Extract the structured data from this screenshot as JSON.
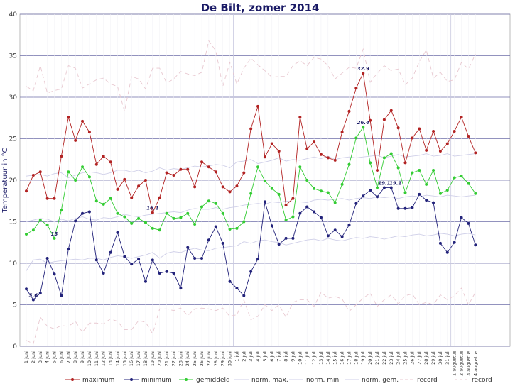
{
  "chart_data": {
    "type": "line",
    "title": "De Bilt, zomer 2014",
    "ylabel": "Temperatuur in °C",
    "ylim": [
      0,
      40
    ],
    "yticks": [
      0,
      5,
      10,
      15,
      20,
      25,
      30,
      35,
      40
    ],
    "grid": true,
    "categories": [
      "1 juni",
      "2 juni",
      "3 juni",
      "4 juni",
      "5 juni",
      "6 juni",
      "7 juni",
      "8 juni",
      "9 juni",
      "10 juni",
      "11 juni",
      "12 juni",
      "13 juni",
      "14 juni",
      "15 juni",
      "16 juni",
      "17 juni",
      "18 juni",
      "19 juni",
      "20 juni",
      "21 juni",
      "22 juni",
      "23 juni",
      "24 juni",
      "25 juni",
      "26 juni",
      "27 juni",
      "28 juni",
      "29 juni",
      "30 juni",
      "1 juli",
      "2 juli",
      "3 juli",
      "4 juli",
      "5 juli",
      "6 juli",
      "7 juli",
      "8 juli",
      "9 juli",
      "10 juli",
      "11 juli",
      "12 juli",
      "13 juli",
      "14 juli",
      "15 juli",
      "16 juli",
      "17 juli",
      "18 juli",
      "19 juli",
      "20 juli",
      "21 juli",
      "22 juli",
      "23 juli",
      "24 juli",
      "25 juli",
      "26 juli",
      "27 juli",
      "28 juli",
      "29 juli",
      "30 juli",
      "31 juli",
      "1 augustus",
      "2 augustus",
      "3 augustus",
      "4 augustus"
    ],
    "series": [
      {
        "name": "maximum",
        "color": "#b22222",
        "style": "marker",
        "values": [
          18.7,
          20.6,
          21.0,
          17.8,
          17.8,
          22.9,
          27.6,
          24.8,
          27.1,
          25.8,
          21.9,
          22.9,
          22.2,
          18.9,
          20.1,
          17.9,
          19.3,
          20.0,
          16.1,
          17.9,
          20.9,
          20.6,
          21.3,
          21.3,
          19.2,
          22.2,
          21.6,
          21.0,
          19.2,
          18.6,
          19.3,
          20.9,
          26.2,
          28.9,
          22.8,
          24.4,
          23.5,
          17.0,
          17.8,
          27.6,
          23.8,
          24.6,
          23.1,
          22.7,
          22.4,
          25.8,
          28.3,
          31.1,
          32.9,
          27.2,
          21.2,
          27.3,
          28.4,
          26.3,
          22.1,
          25.1,
          26.2,
          23.6,
          25.9,
          23.5,
          24.4,
          25.9,
          27.6,
          25.3,
          23.3
        ]
      },
      {
        "name": "minimum",
        "color": "#22227a",
        "style": "marker",
        "values": [
          6.9,
          5.6,
          6.4,
          10.6,
          8.7,
          6.1,
          11.7,
          15.1,
          16.0,
          16.2,
          10.4,
          8.8,
          11.3,
          13.7,
          10.8,
          9.9,
          10.5,
          7.8,
          10.4,
          8.8,
          9.0,
          8.8,
          7.0,
          11.9,
          10.6,
          10.6,
          12.8,
          14.4,
          12.4,
          7.8,
          7.0,
          6.1,
          9.0,
          10.5,
          17.4,
          14.5,
          12.3,
          13.0,
          13.0,
          16.0,
          16.8,
          16.2,
          15.5,
          13.3,
          14.0,
          13.2,
          14.6,
          17.2,
          18.1,
          18.8,
          18.0,
          19.1,
          19.1,
          16.6,
          16.6,
          16.7,
          18.3,
          17.6,
          17.3,
          12.4,
          11.3,
          12.5,
          15.5,
          14.8,
          12.2
        ]
      },
      {
        "name": "gemiddeld",
        "color": "#33cc33",
        "style": "marker",
        "values": [
          13.5,
          14.0,
          15.2,
          14.6,
          13.0,
          16.4,
          21.0,
          20.0,
          21.6,
          20.4,
          17.5,
          17.1,
          17.8,
          16.0,
          15.6,
          14.8,
          15.4,
          14.9,
          14.2,
          14.0,
          16.0,
          15.4,
          15.5,
          16.0,
          14.7,
          16.8,
          17.5,
          17.2,
          16.0,
          14.1,
          14.2,
          15.0,
          18.4,
          21.6,
          19.9,
          19.0,
          18.3,
          15.2,
          15.6,
          21.6,
          20.0,
          19.0,
          18.7,
          18.5,
          17.3,
          19.5,
          21.9,
          25.1,
          26.4,
          22.1,
          19.1,
          22.7,
          23.2,
          21.5,
          18.5,
          20.9,
          21.2,
          19.5,
          21.2,
          18.4,
          18.8,
          20.3,
          20.5,
          19.6,
          18.4
        ]
      },
      {
        "name": "norm. max.",
        "color": "#cfcfe8",
        "style": "line",
        "values": [
          20.5,
          20.6,
          20.7,
          20.5,
          20.8,
          20.9,
          20.3,
          20.6,
          20.9,
          21.0,
          20.9,
          20.7,
          20.9,
          21.2,
          21.2,
          21.0,
          21.2,
          20.9,
          21.1,
          21.5,
          21.2,
          21.4,
          21.3,
          21.5,
          21.7,
          21.6,
          21.7,
          21.9,
          21.8,
          21.5,
          22.2,
          22.3,
          22.5,
          22.0,
          22.2,
          22.4,
          22.7,
          22.3,
          22.5,
          22.4,
          22.6,
          22.8,
          22.6,
          22.9,
          22.5,
          22.7,
          22.8,
          22.7,
          22.8,
          22.9,
          23.0,
          22.7,
          22.9,
          23.1,
          22.8,
          22.9,
          23.0,
          23.2,
          22.9,
          23.0,
          23.2,
          22.9,
          23.0,
          23.1,
          23.2
        ]
      },
      {
        "name": "norm. min",
        "color": "#cfcfe8",
        "style": "line",
        "values": [
          9.1,
          10.4,
          10.5,
          10.0,
          10.2,
          10.3,
          10.4,
          10.5,
          10.4,
          10.6,
          10.6,
          10.4,
          10.7,
          10.9,
          10.8,
          10.6,
          10.8,
          11.0,
          11.3,
          10.6,
          11.2,
          11.4,
          11.3,
          11.6,
          11.8,
          11.6,
          11.5,
          11.8,
          11.9,
          12.0,
          12.1,
          12.6,
          12.4,
          12.7,
          12.8,
          12.6,
          12.5,
          12.2,
          12.4,
          12.6,
          12.8,
          12.9,
          12.7,
          13.0,
          12.8,
          12.7,
          12.9,
          13.1,
          13.0,
          13.2,
          13.1,
          12.9,
          13.1,
          13.3,
          13.2,
          13.4,
          13.5,
          13.3,
          13.4,
          13.6,
          13.5,
          13.3,
          13.5,
          13.6,
          13.4
        ]
      },
      {
        "name": "norm. gem.",
        "color": "#cfcfe8",
        "style": "line",
        "values": [
          15.0,
          15.2,
          15.4,
          15.3,
          15.0,
          15.3,
          15.1,
          15.4,
          15.6,
          15.3,
          15.2,
          15.5,
          15.4,
          15.6,
          15.9,
          15.7,
          15.6,
          15.8,
          15.9,
          16.0,
          16.1,
          16.2,
          16.1,
          16.4,
          16.6,
          16.5,
          16.5,
          16.7,
          16.5,
          16.7,
          16.8,
          17.0,
          17.1,
          17.2,
          17.1,
          17.4,
          17.3,
          17.5,
          17.4,
          17.4,
          17.3,
          17.6,
          17.7,
          17.6,
          17.7,
          17.8,
          17.6,
          17.8,
          17.9,
          17.8,
          18.0,
          17.9,
          18.0,
          17.8,
          18.0,
          18.1,
          18.0,
          18.2,
          18.1,
          18.0,
          18.2,
          18.1,
          18.0,
          18.1,
          18.2
        ]
      },
      {
        "name": "record",
        "color": "#e8c8d0",
        "style": "dashed",
        "values": [
          31.3,
          30.8,
          33.8,
          30.5,
          30.8,
          31.0,
          33.8,
          33.5,
          31.1,
          31.6,
          32.1,
          32.3,
          31.6,
          31.3,
          28.3,
          32.5,
          32.2,
          31.0,
          33.5,
          33.5,
          31.7,
          32.2,
          33.1,
          32.8,
          32.6,
          33.0,
          36.8,
          35.6,
          31.3,
          34.2,
          31.6,
          33.5,
          34.7,
          33.9,
          33.2,
          32.4,
          32.5,
          32.5,
          33.8,
          34.4,
          33.8,
          34.8,
          34.6,
          33.8,
          32.2,
          32.9,
          33.6,
          33.5,
          35.8,
          31.8,
          32.9,
          33.8,
          33.2,
          33.4,
          31.5,
          32.3,
          34.3,
          35.7,
          32.3,
          33.0,
          31.9,
          32.1,
          34.2,
          33.4,
          35.2
        ]
      },
      {
        "name": "record",
        "color": "#e8c8d0",
        "style": "dashed",
        "values": [
          0.7,
          0.3,
          3.5,
          2.4,
          2.1,
          2.5,
          2.4,
          3.0,
          1.7,
          2.8,
          2.8,
          2.7,
          3.3,
          3.0,
          2.0,
          2.0,
          3.1,
          2.9,
          1.5,
          4.5,
          4.5,
          4.3,
          4.6,
          3.7,
          4.5,
          4.6,
          4.5,
          4.3,
          4.6,
          3.6,
          3.8,
          5.6,
          3.2,
          3.6,
          5.0,
          4.3,
          5.0,
          3.5,
          5.3,
          5.6,
          5.6,
          4.8,
          6.5,
          5.8,
          6.0,
          5.7,
          4.2,
          5.0,
          5.8,
          6.4,
          4.8,
          5.6,
          6.2,
          5.1,
          6.1,
          6.3,
          5.0,
          5.3,
          5.0,
          6.2,
          5.6,
          6.1,
          7.0,
          5.0,
          6.5
        ]
      }
    ],
    "annotations": [
      {
        "index": 1,
        "series": "minimum",
        "label": "5.6"
      },
      {
        "index": 4,
        "series": "gemiddeld",
        "label": "13"
      },
      {
        "index": 18,
        "series": "maximum",
        "label": "16.1"
      },
      {
        "index": 48,
        "series": "maximum",
        "label": "32.9"
      },
      {
        "index": 48,
        "series": "gemiddeld",
        "label": "26.4"
      },
      {
        "index": 51,
        "series": "minimum",
        "label": "19.1"
      },
      {
        "index": 52,
        "series": "minimum",
        "label": "19.1"
      }
    ],
    "month_separators": [
      "1 juli",
      "1 augustus"
    ],
    "legend_position": "bottom",
    "legend": [
      "maximum",
      "minimum",
      "gemiddeld",
      "norm. max.",
      "norm. min",
      "norm. gem.",
      "record",
      "record"
    ]
  }
}
